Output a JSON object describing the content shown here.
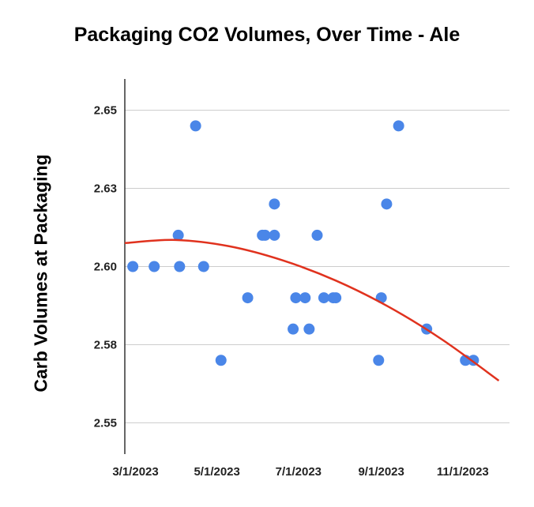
{
  "chart_data": {
    "type": "scatter",
    "title": "Packaging CO2 Volumes, Over Time - Ale",
    "xlabel": "",
    "ylabel": "Carb Volumes at Packaging",
    "x_ticks": [
      "3/1/2023",
      "5/1/2023",
      "7/1/2023",
      "9/1/2023",
      "11/1/2023"
    ],
    "x_tick_days": [
      0,
      61,
      122,
      184,
      245
    ],
    "xlim_days": [
      -8,
      280
    ],
    "y_ticks": [
      "2.65",
      "2.63",
      "2.60",
      "2.58",
      "2.55"
    ],
    "y_tick_values": [
      2.65,
      2.625,
      2.6,
      2.575,
      2.55
    ],
    "ylim": [
      2.54,
      2.66
    ],
    "grid": true,
    "marker_color": "#4a86e8",
    "trend_color": "#e0321e",
    "trendline": {
      "type": "polynomial",
      "x_days": [
        -8,
        30,
        70,
        110,
        150,
        190,
        230,
        272
      ],
      "values": [
        2.6075,
        2.6085,
        2.6065,
        2.602,
        2.5955,
        2.587,
        2.5765,
        2.5635
      ]
    },
    "series": [
      {
        "name": "Ale",
        "points": [
          {
            "x_days": -2,
            "y": 2.6
          },
          {
            "x_days": 14,
            "y": 2.6
          },
          {
            "x_days": 32,
            "y": 2.61
          },
          {
            "x_days": 33,
            "y": 2.6
          },
          {
            "x_days": 45,
            "y": 2.645
          },
          {
            "x_days": 51,
            "y": 2.6
          },
          {
            "x_days": 64,
            "y": 2.57
          },
          {
            "x_days": 84,
            "y": 2.59
          },
          {
            "x_days": 95,
            "y": 2.61
          },
          {
            "x_days": 97,
            "y": 2.61
          },
          {
            "x_days": 104,
            "y": 2.62
          },
          {
            "x_days": 104,
            "y": 2.61
          },
          {
            "x_days": 118,
            "y": 2.58
          },
          {
            "x_days": 120,
            "y": 2.59
          },
          {
            "x_days": 127,
            "y": 2.59
          },
          {
            "x_days": 130,
            "y": 2.58
          },
          {
            "x_days": 136,
            "y": 2.61
          },
          {
            "x_days": 141,
            "y": 2.59
          },
          {
            "x_days": 148,
            "y": 2.59
          },
          {
            "x_days": 150,
            "y": 2.59
          },
          {
            "x_days": 182,
            "y": 2.57
          },
          {
            "x_days": 184,
            "y": 2.59
          },
          {
            "x_days": 188,
            "y": 2.62
          },
          {
            "x_days": 197,
            "y": 2.645
          },
          {
            "x_days": 218,
            "y": 2.58
          },
          {
            "x_days": 247,
            "y": 2.57
          },
          {
            "x_days": 253,
            "y": 2.57
          }
        ]
      }
    ]
  }
}
